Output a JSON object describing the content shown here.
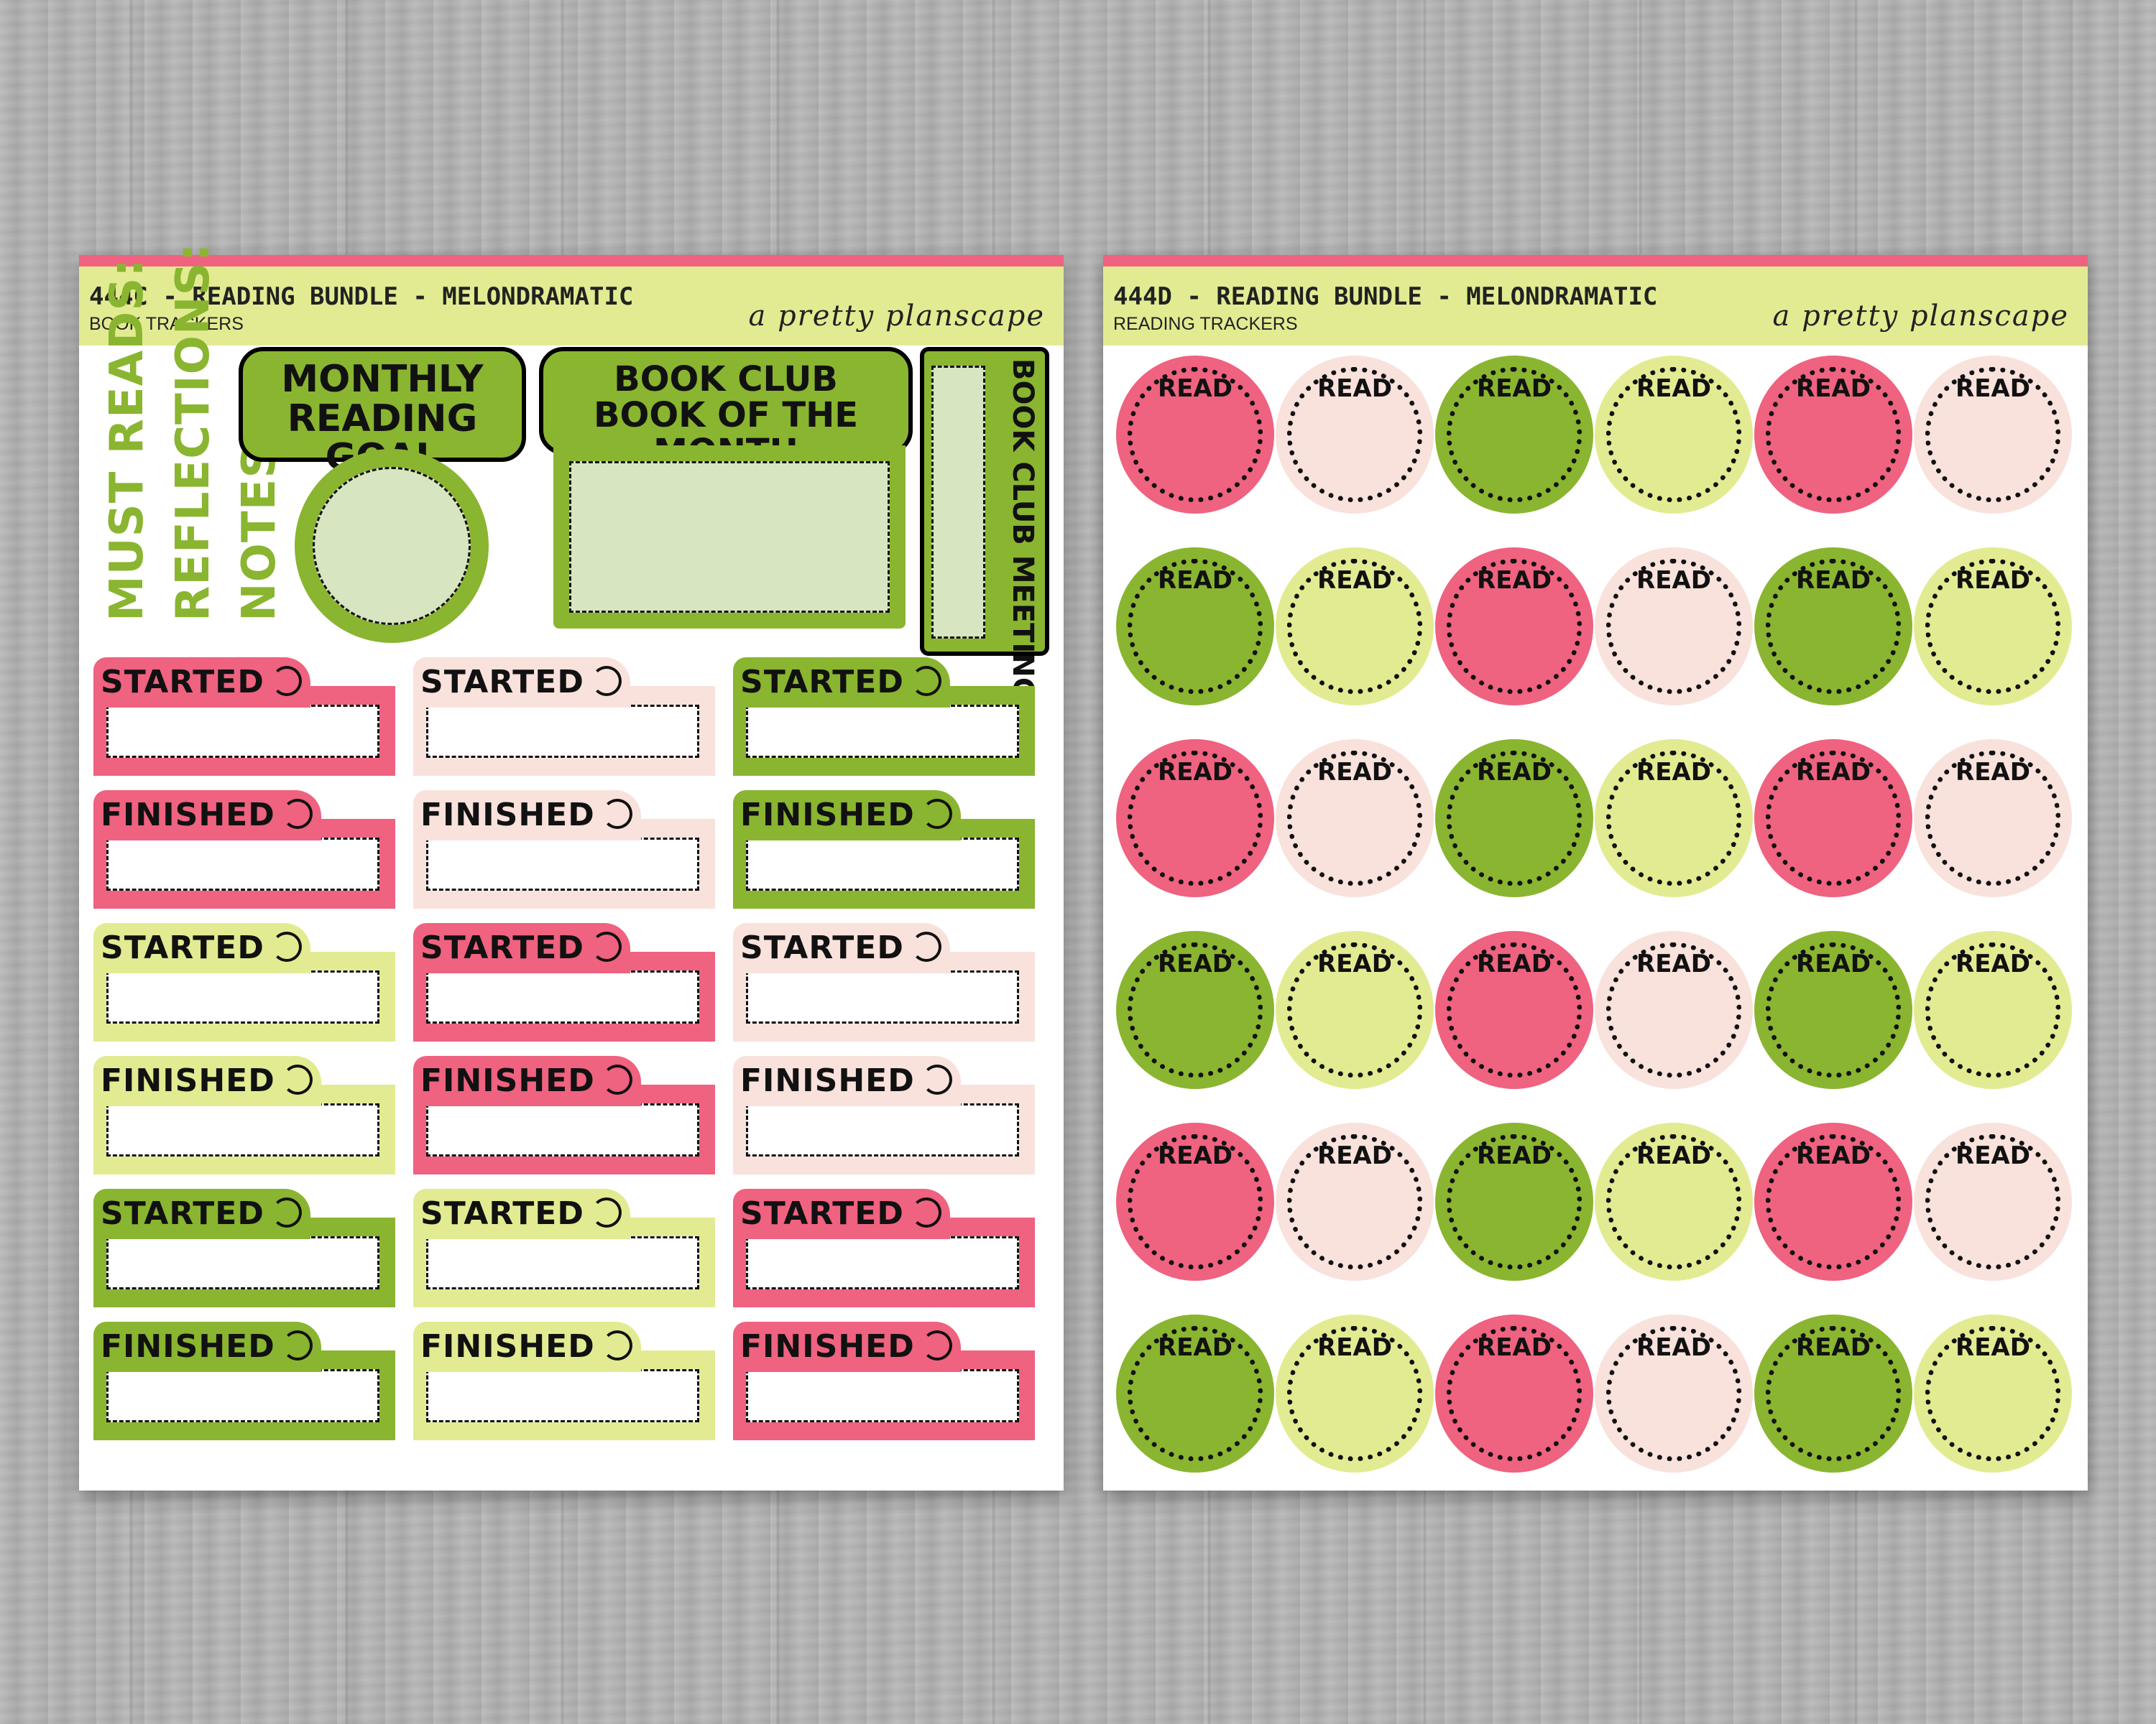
{
  "colors": {
    "pink": "#ef6280",
    "blush": "#f9e1dc",
    "green": "#8ab530",
    "lime": "#e3eb92",
    "mint": "#d7e6c0",
    "header": "#e3eb92",
    "topbar": "#ef6280"
  },
  "left_sheet": {
    "code": "444C - READING BUNDLE - MELONDRAMATIC",
    "subtitle": "BOOK TRACKERS",
    "brand": "a pretty planscape",
    "labels": [
      "MUST READS:",
      "REFLECTIONS:",
      "NOTES:"
    ],
    "goal_title": "MONTHLY READING GOAL",
    "goal_line1": "MONTHLY",
    "goal_line2": "READING GOAL",
    "club_line1": "BOOK CLUB",
    "club_line2": "BOOK OF THE MONTH",
    "meeting": "BOOK CLUB MEETING",
    "trackers": [
      {
        "label": "STARTED",
        "color": "pink"
      },
      {
        "label": "STARTED",
        "color": "blush"
      },
      {
        "label": "STARTED",
        "color": "green"
      },
      {
        "label": "FINISHED",
        "color": "pink"
      },
      {
        "label": "FINISHED",
        "color": "blush"
      },
      {
        "label": "FINISHED",
        "color": "green"
      },
      {
        "label": "STARTED",
        "color": "lime"
      },
      {
        "label": "STARTED",
        "color": "pink"
      },
      {
        "label": "STARTED",
        "color": "blush"
      },
      {
        "label": "FINISHED",
        "color": "lime"
      },
      {
        "label": "FINISHED",
        "color": "pink"
      },
      {
        "label": "FINISHED",
        "color": "blush"
      },
      {
        "label": "STARTED",
        "color": "green"
      },
      {
        "label": "STARTED",
        "color": "lime"
      },
      {
        "label": "STARTED",
        "color": "pink"
      },
      {
        "label": "FINISHED",
        "color": "green"
      },
      {
        "label": "FINISHED",
        "color": "lime"
      },
      {
        "label": "FINISHED",
        "color": "pink"
      }
    ]
  },
  "right_sheet": {
    "code": "444D - READING BUNDLE - MELONDRAMATIC",
    "subtitle": "READING TRACKERS",
    "brand": "a pretty planscape",
    "circle_label": "READ",
    "rows": [
      [
        "pink",
        "blush",
        "green",
        "lime",
        "pink",
        "blush"
      ],
      [
        "green",
        "lime",
        "pink",
        "blush",
        "green",
        "lime"
      ],
      [
        "pink",
        "blush",
        "green",
        "lime",
        "pink",
        "blush"
      ],
      [
        "green",
        "lime",
        "pink",
        "blush",
        "green",
        "lime"
      ],
      [
        "pink",
        "blush",
        "green",
        "lime",
        "pink",
        "blush"
      ],
      [
        "green",
        "lime",
        "pink",
        "blush",
        "green",
        "lime"
      ]
    ]
  }
}
